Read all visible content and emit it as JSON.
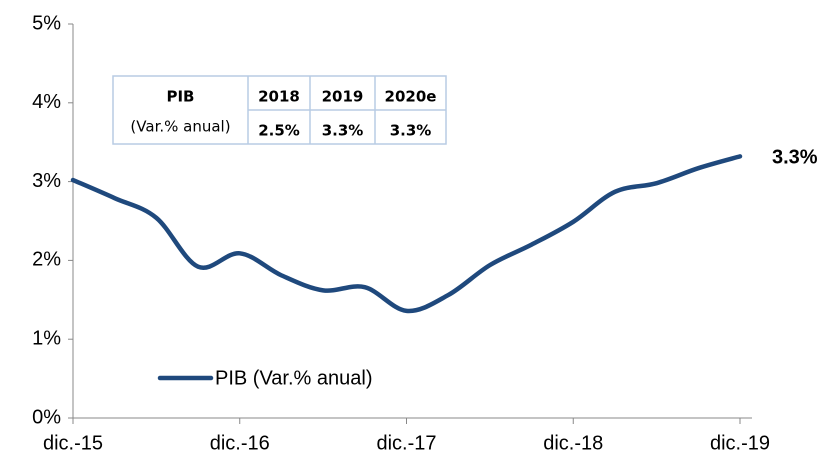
{
  "chart_data": {
    "type": "line",
    "categories": [
      "dic.-15",
      null,
      null,
      null,
      "dic.-16",
      null,
      null,
      null,
      "dic.-17",
      null,
      null,
      null,
      "dic.-18",
      null,
      null,
      null,
      "dic.-19"
    ],
    "series": [
      {
        "name": "PIB (Var.% anual)",
        "color": "#1f497d",
        "values": [
          3.02,
          2.79,
          2.54,
          1.92,
          2.09,
          1.81,
          1.62,
          1.66,
          1.36,
          1.56,
          1.94,
          2.2,
          2.49,
          2.87,
          2.98,
          3.17,
          3.32
        ],
        "value_labels": [
          null,
          null,
          null,
          null,
          null,
          null,
          null,
          null,
          null,
          null,
          null,
          null,
          null,
          null,
          null,
          null,
          "3.3%"
        ]
      }
    ],
    "ylim": [
      0,
      5
    ],
    "yticks": [
      {
        "value": 0,
        "label": "0%"
      },
      {
        "value": 1,
        "label": "1%"
      },
      {
        "value": 2,
        "label": "2%"
      },
      {
        "value": 3,
        "label": "3%"
      },
      {
        "value": 4,
        "label": "4%"
      },
      {
        "value": 5,
        "label": "5%"
      }
    ],
    "grid": false,
    "legend": "lower left",
    "table": {
      "header": [
        "PIB",
        "2018",
        "2019",
        "2020e"
      ],
      "rows": [
        [
          "(Var.% anual)",
          "2.5%",
          "3.3%",
          "3.3%"
        ]
      ]
    }
  }
}
